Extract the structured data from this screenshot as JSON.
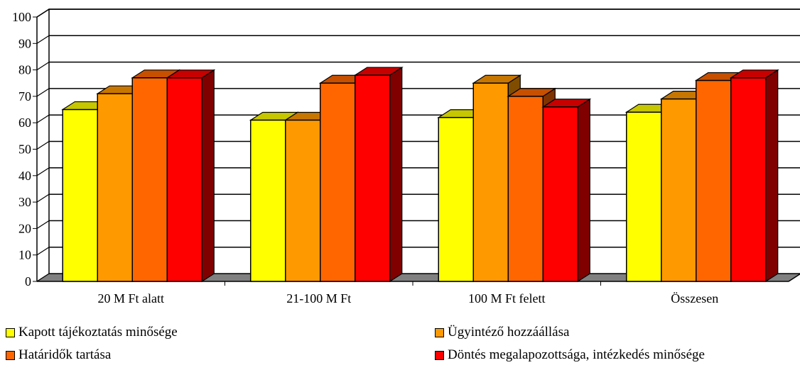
{
  "chart_data": {
    "type": "bar",
    "title": "",
    "xlabel": "",
    "ylabel": "",
    "ylim": [
      0,
      100
    ],
    "yticks": [
      "0",
      "10",
      "20",
      "30",
      "40",
      "50",
      "60",
      "70",
      "80",
      "90",
      "100"
    ],
    "categories": [
      "20 M Ft alatt",
      "21-100 M Ft",
      "100 M Ft felett",
      "Összesen"
    ],
    "series": [
      {
        "name": "Kapott tájékoztatás minősége",
        "color": "#ffff00",
        "values": [
          65,
          61,
          62,
          64
        ]
      },
      {
        "name": "Ügyintéző hozzáállása",
        "color": "#ff9900",
        "values": [
          71,
          61,
          75,
          69
        ]
      },
      {
        "name": "Határidők tartása",
        "color": "#ff6600",
        "values": [
          77,
          75,
          70,
          76
        ]
      },
      {
        "name": "Döntés megalapozottsága, intézkedés minősége",
        "color": "#ff0000",
        "values": [
          77,
          78,
          66,
          77
        ]
      }
    ],
    "grid": true,
    "three_d": true,
    "legend_position": "bottom"
  }
}
